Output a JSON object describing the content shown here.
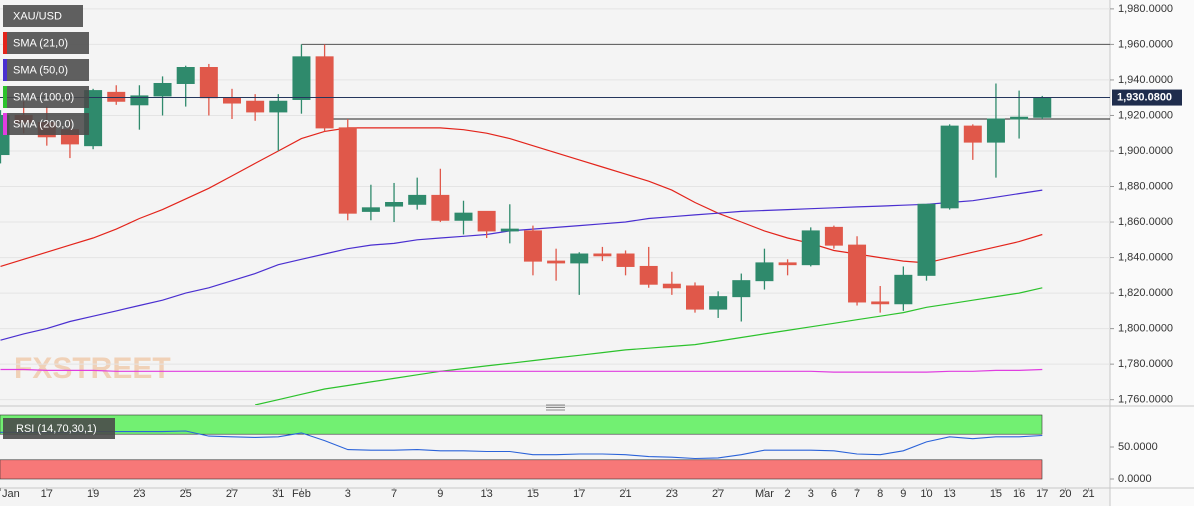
{
  "chart_data": [
    {
      "type": "candlestick",
      "legend_title": "XAU/USD",
      "watermark": "FXSTREET",
      "categories": [
        "Jan",
        null,
        "17",
        null,
        "19",
        null,
        "23",
        null,
        "25",
        null,
        "27",
        null,
        "31",
        "Feb",
        null,
        "3",
        null,
        "7",
        null,
        "9",
        null,
        "13",
        null,
        "15",
        null,
        "17",
        null,
        "21",
        null,
        "23",
        null,
        "27",
        null,
        "Mar",
        "2",
        "3",
        "6",
        "7",
        "8",
        "9",
        "10",
        "13",
        null,
        "15",
        "16",
        "17",
        "20",
        "21"
      ],
      "open": [
        1898,
        1920,
        1916,
        1912,
        1903,
        1933,
        1926,
        1931,
        1938,
        1947,
        1930,
        1928,
        1922,
        1929,
        1953,
        1913,
        1866,
        1869,
        1870,
        1875,
        1861,
        1866,
        1855,
        1855,
        1838,
        1837,
        1842,
        1842,
        1835,
        1825,
        1824,
        1811,
        1818,
        1827,
        1837,
        1836,
        1857,
        1847,
        1815,
        1814,
        1830,
        1868,
        1914,
        1905,
        1918,
        1919,
        null,
        null
      ],
      "high": [
        1923,
        1928,
        1925,
        1918,
        1935,
        1937,
        1937,
        1942,
        1948,
        1949,
        1935,
        1932,
        1932,
        1960,
        1960,
        1918,
        1881,
        1882,
        1885,
        1890,
        1872,
        1866,
        1870,
        1858,
        1845,
        1843,
        1846,
        1844,
        1846,
        1832,
        1826,
        1821,
        1831,
        1845,
        1839,
        1857,
        1858,
        1852,
        1824,
        1835,
        1870,
        1915,
        1915,
        1938,
        1934,
        1931,
        null,
        null
      ],
      "low": [
        1893,
        1910,
        1903,
        1896,
        1901,
        1926,
        1912,
        1920,
        1925,
        1920,
        1918,
        1917,
        1900,
        1921,
        1911,
        1861,
        1861,
        1860,
        1867,
        1860,
        1853,
        1851,
        1848,
        1830,
        1827,
        1819,
        1838,
        1830,
        1823,
        1819,
        1809,
        1806,
        1804,
        1822,
        1830,
        1835,
        1845,
        1813,
        1809,
        1810,
        1827,
        1867,
        1895,
        1885,
        1907,
        1918,
        null,
        null
      ],
      "close": [
        1920,
        1916,
        1908,
        1904,
        1934,
        1928,
        1931,
        1938,
        1947,
        1930,
        1927,
        1922,
        1928,
        1953,
        1913,
        1865,
        1868,
        1871,
        1875,
        1861,
        1865,
        1855,
        1856,
        1838,
        1837,
        1842,
        1841,
        1835,
        1825,
        1823,
        1811,
        1818,
        1827,
        1837,
        1836,
        1855,
        1847,
        1815,
        1814,
        1830,
        1870,
        1914,
        1905,
        1918,
        1919,
        1930,
        null,
        null
      ],
      "up_color": "#2f8a6c",
      "down_color": "#e0584a",
      "series": [
        {
          "name": "SMA (21,0)",
          "color": "#e3241b",
          "values": [
            1835,
            1839,
            1843,
            1847,
            1851,
            1856,
            1862,
            1867,
            1873,
            1879,
            1886,
            1893,
            1900,
            1907,
            1911,
            1913,
            1913,
            1913,
            1913,
            1913,
            1912,
            1910,
            1907,
            1903,
            1899,
            1895,
            1891,
            1887,
            1883,
            1878,
            1871,
            1865,
            1860,
            1855,
            1851,
            1848,
            1844,
            1842,
            1840,
            1838,
            1837,
            1840,
            1843,
            1846,
            1849,
            1853,
            null,
            null
          ]
        },
        {
          "name": "SMA (50,0)",
          "color": "#4a2fd0",
          "values": [
            1793.5,
            1797,
            1800,
            1804,
            1807,
            1810,
            1813,
            1816,
            1820,
            1823,
            1827,
            1831,
            1836,
            1839,
            1842,
            1845,
            1847,
            1848,
            1850,
            1851,
            1852,
            1853,
            1855,
            1856,
            1857,
            1858,
            1859,
            1860,
            1862,
            1863,
            1864,
            1865,
            1866,
            1866.5,
            1867,
            1867.5,
            1868,
            1868.5,
            1869,
            1869.5,
            1870,
            1871,
            1872,
            1874,
            1876,
            1878,
            null,
            null
          ]
        },
        {
          "name": "SMA (100,0)",
          "color": "#2cc22c",
          "values": [
            null,
            null,
            null,
            null,
            null,
            null,
            null,
            null,
            null,
            null,
            null,
            1757,
            1760,
            1763,
            1766,
            1768,
            1770,
            1772,
            1774,
            1776,
            1777.5,
            1779,
            1780.5,
            1782,
            1783.5,
            1785,
            1786.5,
            1788,
            1789,
            1790,
            1791,
            1793,
            1795,
            1797,
            1799,
            1801,
            1803,
            1805,
            1807,
            1809,
            1812,
            1814,
            1816,
            1818,
            1820,
            1823,
            null,
            null
          ]
        },
        {
          "name": "SMA (200,0)",
          "color": "#e03de0",
          "values": [
            1777,
            1777,
            1776.5,
            1776.5,
            1776.5,
            1776,
            1776,
            1776,
            1776,
            1776,
            1776,
            1776,
            1776,
            1776,
            1776,
            1776,
            1776,
            1776,
            1776,
            1776,
            1776,
            1776,
            1776,
            1776,
            1776,
            1776,
            1776,
            1776,
            1776,
            1776,
            1776,
            1776,
            1776,
            1776,
            1776,
            1776,
            1775.5,
            1775.5,
            1775.5,
            1775.5,
            1775.5,
            1776,
            1776,
            1776.5,
            1776.5,
            1777,
            null,
            null
          ]
        }
      ],
      "hlines": [
        1960,
        1918
      ],
      "last_price": {
        "value": 1930.08,
        "label": "1,930.0800"
      },
      "ylim": [
        1757,
        1985
      ],
      "yticks": [
        {
          "value": 1760,
          "label": "1,760.0000"
        },
        {
          "value": 1780,
          "label": "1,780.0000"
        },
        {
          "value": 1800,
          "label": "1,800.0000"
        },
        {
          "value": 1820,
          "label": "1,820.0000"
        },
        {
          "value": 1840,
          "label": "1,840.0000"
        },
        {
          "value": 1860,
          "label": "1,860.0000"
        },
        {
          "value": 1880,
          "label": "1,880.0000"
        },
        {
          "value": 1900,
          "label": "1,900.0000"
        },
        {
          "value": 1920,
          "label": "1,920.0000"
        },
        {
          "value": 1940,
          "label": "1,940.0000"
        },
        {
          "value": 1960,
          "label": "1,960.0000"
        },
        {
          "value": 1980,
          "label": "1,980.0000"
        }
      ],
      "grid": true
    },
    {
      "type": "line",
      "series": [
        {
          "name": "RSI (14,70,30,1)",
          "color": "#2b63d9",
          "values": [
            73,
            73,
            73,
            73,
            74,
            74,
            74,
            74,
            75,
            67,
            66,
            65,
            66,
            72,
            60,
            46,
            45,
            45,
            46,
            44,
            44,
            43,
            43,
            38,
            38,
            39,
            39,
            38,
            35,
            34,
            32,
            33,
            38,
            45,
            45,
            45,
            44,
            39,
            38,
            44,
            58,
            66,
            63,
            66,
            66,
            68,
            null,
            null
          ]
        }
      ],
      "bands": [
        {
          "from": 70,
          "to": 100,
          "color": "#72f072"
        },
        {
          "from": 0,
          "to": 30,
          "color": "#f77878"
        }
      ],
      "ylim": [
        0,
        100
      ],
      "yticks": [
        {
          "value": 0,
          "label": "0.0000"
        },
        {
          "value": 50,
          "label": "50.0000"
        }
      ]
    }
  ]
}
